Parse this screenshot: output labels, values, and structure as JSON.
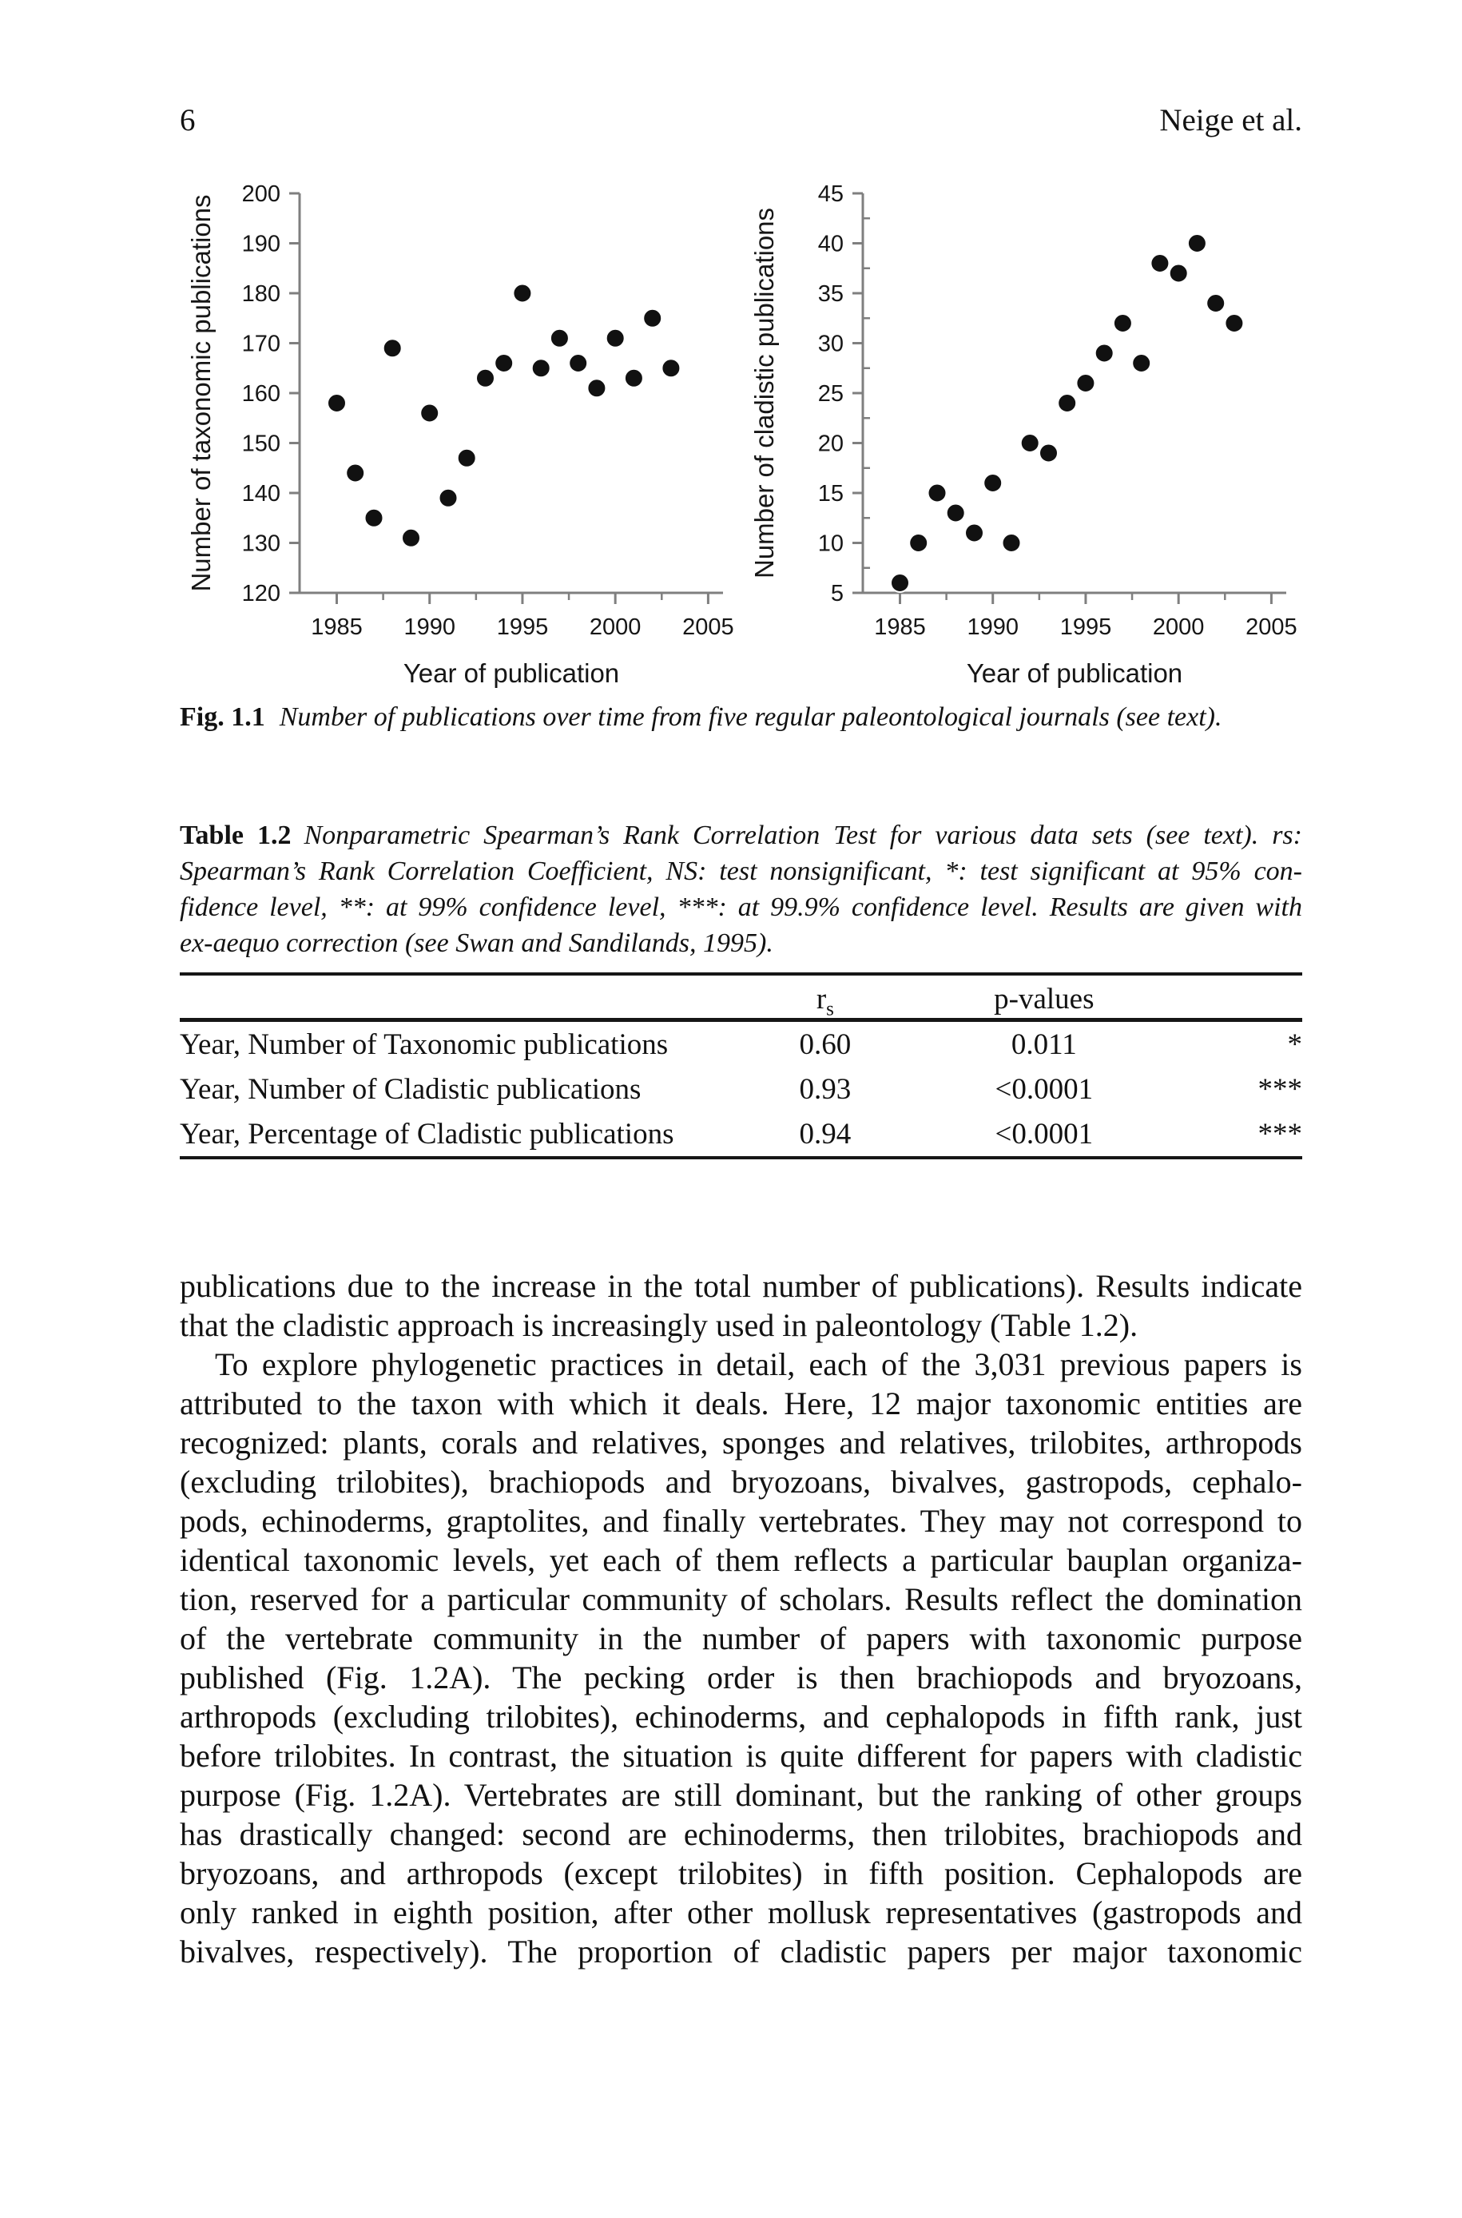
{
  "header": {
    "page_number": "6",
    "running_title": "Neige et al."
  },
  "figure_caption": {
    "label": "Fig. 1.1",
    "text": "Number of publications over time from five regular paleontological journals (see text)."
  },
  "chart_data": [
    {
      "type": "scatter",
      "title": "",
      "xlabel": "Year of publication",
      "ylabel": "Number of taxonomic publications",
      "xlim": [
        1983,
        2005.8
      ],
      "ylim": [
        120,
        200
      ],
      "xticks": [
        1985,
        1990,
        1995,
        2000,
        2005
      ],
      "yticks": [
        120,
        130,
        140,
        150,
        160,
        170,
        180,
        190,
        200
      ],
      "x_minor_midpoints": true,
      "y_minor_step": null,
      "grid": false,
      "legend": "none",
      "marker_color": "#111111",
      "axis_color": "#7f7f7f",
      "x": [
        1985,
        1986,
        1987,
        1988,
        1989,
        1990,
        1991,
        1992,
        1993,
        1994,
        1995,
        1996,
        1997,
        1998,
        1999,
        2000,
        2001,
        2002,
        2003
      ],
      "y": [
        158,
        144,
        135,
        169,
        131,
        156,
        139,
        147,
        163,
        166,
        180,
        165,
        171,
        166,
        161,
        171,
        163,
        175,
        165
      ]
    },
    {
      "type": "scatter",
      "title": "",
      "xlabel": "Year of publication",
      "ylabel": "Number of cladistic publications",
      "xlim": [
        1983,
        2005.8
      ],
      "ylim": [
        5,
        45
      ],
      "xticks": [
        1985,
        1990,
        1995,
        2000,
        2005
      ],
      "yticks": [
        5,
        10,
        15,
        20,
        25,
        30,
        35,
        40,
        45
      ],
      "x_minor_midpoints": true,
      "y_minor_step": 2.5,
      "grid": false,
      "legend": "none",
      "marker_color": "#111111",
      "axis_color": "#7f7f7f",
      "x": [
        1985,
        1986,
        1987,
        1988,
        1989,
        1990,
        1991,
        1992,
        1993,
        1994,
        1995,
        1996,
        1997,
        1998,
        1999,
        2000,
        2001,
        2002,
        2003
      ],
      "y": [
        6,
        10,
        15,
        13,
        11,
        16,
        10,
        20,
        19,
        24,
        26,
        29,
        32,
        28,
        38,
        37,
        40,
        34,
        32
      ]
    }
  ],
  "table": {
    "caption_label": "Table 1.2",
    "caption_lines": [
      "Nonparametric Spearman’s Rank Correlation Test for various data sets (see text). rs:",
      "Spearman’s Rank Correlation Coefficient, NS: test nonsignificant, *: test significant at 95% con-",
      "fidence level, **: at 99% confidence level, ***: at 99.9% confidence level. Results are given with",
      "ex-aequo correction (see Swan and Sandilands, 1995)."
    ],
    "header": {
      "rs_base": "r",
      "rs_sub": "s",
      "p_label": "p-values"
    },
    "rows": [
      {
        "label": "Year, Number of Taxonomic publications",
        "rs": "0.60",
        "p": "0.011",
        "sig": "*"
      },
      {
        "label": "Year, Number of Cladistic publications",
        "rs": "0.93",
        "p": "<0.0001",
        "sig": "***"
      },
      {
        "label": "Year, Percentage of Cladistic publications",
        "rs": "0.94",
        "p": "<0.0001",
        "sig": "***"
      }
    ]
  },
  "body": {
    "lines": [
      {
        "text": "publications due to the increase in the total number of publications). Results indicate",
        "justify": true,
        "indent": false
      },
      {
        "text": "that the cladistic approach is increasingly used in paleontology (Table 1.2).",
        "justify": false,
        "indent": false
      },
      {
        "text": "To explore phylogenetic practices in detail, each of the 3,031 previous papers is",
        "justify": true,
        "indent": true
      },
      {
        "text": "attributed to the taxon with which it deals. Here, 12 major taxonomic entities are",
        "justify": true,
        "indent": false
      },
      {
        "text": "recognized: plants, corals and relatives, sponges and relatives, trilobites, arthropods",
        "justify": true,
        "indent": false
      },
      {
        "text": "(excluding trilobites), brachiopods and bryozoans, bivalves, gastropods, cephalo-",
        "justify": true,
        "indent": false
      },
      {
        "text": "pods, echinoderms, graptolites, and finally vertebrates. They may not correspond to",
        "justify": true,
        "indent": false
      },
      {
        "text": "identical taxonomic levels, yet each of them reflects a particular bauplan organiza-",
        "justify": true,
        "indent": false
      },
      {
        "text": "tion, reserved for a particular community of scholars. Results reflect the domination",
        "justify": true,
        "indent": false
      },
      {
        "text": "of the vertebrate community in the number of papers with taxonomic purpose",
        "justify": true,
        "indent": false
      },
      {
        "text": "published (Fig. 1.2A). The pecking order is then brachiopods and bryozoans,",
        "justify": true,
        "indent": false
      },
      {
        "text": "arthropods (excluding trilobites), echinoderms, and cephalopods in fifth rank, just",
        "justify": true,
        "indent": false
      },
      {
        "text": "before trilobites. In contrast, the situation is quite different for papers with cladistic",
        "justify": true,
        "indent": false
      },
      {
        "text": "purpose (Fig. 1.2A). Vertebrates are still dominant, but the ranking of other groups",
        "justify": true,
        "indent": false
      },
      {
        "text": "has drastically changed: second are echinoderms, then trilobites, brachiopods and",
        "justify": true,
        "indent": false
      },
      {
        "text": "bryozoans, and arthropods (except trilobites) in fifth position. Cephalopods are",
        "justify": true,
        "indent": false
      },
      {
        "text": "only ranked in eighth position, after other mollusk representatives (gastropods and",
        "justify": true,
        "indent": false
      },
      {
        "text": "bivalves, respectively). The proportion of cladistic papers per major taxonomic",
        "justify": true,
        "indent": false
      }
    ]
  }
}
